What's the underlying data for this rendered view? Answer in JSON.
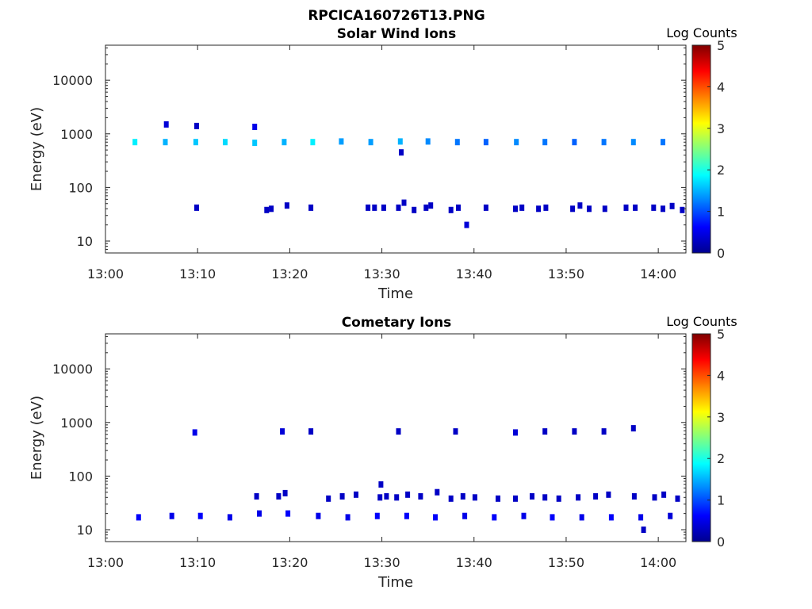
{
  "figure_title": "RPCICA160726T13.PNG",
  "colors": {
    "colormap": [
      "#00008f",
      "#0000ff",
      "#0080ff",
      "#00ffff",
      "#80ff80",
      "#ffff00",
      "#ff8000",
      "#ff0000",
      "#800000"
    ],
    "axis": "#262626",
    "background": "#ffffff"
  },
  "chart_data": [
    {
      "type": "heatmap",
      "title": "Solar Wind Ions",
      "xlabel": "Time",
      "ylabel": "Energy (eV)",
      "x_unit": "minutes after 13:00",
      "xlim": [
        0,
        63
      ],
      "ylim": [
        6,
        45000
      ],
      "yscale": "log",
      "x_ticks": [
        0,
        10,
        20,
        30,
        40,
        50,
        60
      ],
      "x_tick_labels": [
        "13:00",
        "13:10",
        "13:20",
        "13:30",
        "13:40",
        "13:50",
        "14:00"
      ],
      "y_ticks": [
        10,
        100,
        1000,
        10000
      ],
      "y_tick_labels": [
        "10",
        "100",
        "1000",
        "10000"
      ],
      "colorbar": {
        "label": "Log Counts",
        "range": [
          0,
          5
        ],
        "ticks": [
          0,
          1,
          2,
          3,
          4,
          5
        ],
        "tick_labels": [
          "0",
          "1",
          "2",
          "3",
          "4",
          "5"
        ]
      },
      "cells": [
        {
          "t": 3.2,
          "e": 700,
          "v": 1.8
        },
        {
          "t": 6.5,
          "e": 700,
          "v": 1.5
        },
        {
          "t": 9.8,
          "e": 700,
          "v": 1.6
        },
        {
          "t": 13.0,
          "e": 700,
          "v": 1.7
        },
        {
          "t": 16.2,
          "e": 680,
          "v": 1.6
        },
        {
          "t": 19.4,
          "e": 700,
          "v": 1.5
        },
        {
          "t": 22.5,
          "e": 700,
          "v": 1.8
        },
        {
          "t": 25.6,
          "e": 720,
          "v": 1.4
        },
        {
          "t": 28.8,
          "e": 700,
          "v": 1.4
        },
        {
          "t": 32.0,
          "e": 720,
          "v": 1.5
        },
        {
          "t": 35.0,
          "e": 720,
          "v": 1.3
        },
        {
          "t": 38.2,
          "e": 700,
          "v": 1.2
        },
        {
          "t": 41.3,
          "e": 700,
          "v": 1.1
        },
        {
          "t": 44.6,
          "e": 700,
          "v": 1.3
        },
        {
          "t": 47.7,
          "e": 700,
          "v": 1.2
        },
        {
          "t": 50.9,
          "e": 700,
          "v": 1.1
        },
        {
          "t": 54.1,
          "e": 700,
          "v": 1.2
        },
        {
          "t": 57.3,
          "e": 700,
          "v": 1.3
        },
        {
          "t": 60.5,
          "e": 700,
          "v": 1.2
        },
        {
          "t": 6.6,
          "e": 1500,
          "v": 0.4
        },
        {
          "t": 9.9,
          "e": 1400,
          "v": 0.3
        },
        {
          "t": 16.2,
          "e": 1350,
          "v": 0.5
        },
        {
          "t": 32.1,
          "e": 450,
          "v": 0.3
        },
        {
          "t": 9.9,
          "e": 42,
          "v": 0.3
        },
        {
          "t": 17.5,
          "e": 38,
          "v": 0.3
        },
        {
          "t": 18.0,
          "e": 40,
          "v": 0.3
        },
        {
          "t": 19.7,
          "e": 46,
          "v": 0.3
        },
        {
          "t": 22.3,
          "e": 42,
          "v": 0.3
        },
        {
          "t": 28.5,
          "e": 42,
          "v": 0.3
        },
        {
          "t": 29.2,
          "e": 42,
          "v": 0.3
        },
        {
          "t": 30.2,
          "e": 42,
          "v": 0.3
        },
        {
          "t": 31.8,
          "e": 42,
          "v": 0.3
        },
        {
          "t": 32.4,
          "e": 52,
          "v": 0.3
        },
        {
          "t": 33.5,
          "e": 38,
          "v": 0.3
        },
        {
          "t": 34.8,
          "e": 42,
          "v": 0.3
        },
        {
          "t": 35.3,
          "e": 46,
          "v": 0.3
        },
        {
          "t": 37.5,
          "e": 38,
          "v": 0.3
        },
        {
          "t": 38.3,
          "e": 42,
          "v": 0.3
        },
        {
          "t": 39.2,
          "e": 20,
          "v": 0.4
        },
        {
          "t": 41.3,
          "e": 42,
          "v": 0.3
        },
        {
          "t": 44.5,
          "e": 40,
          "v": 0.3
        },
        {
          "t": 45.2,
          "e": 42,
          "v": 0.3
        },
        {
          "t": 47.0,
          "e": 40,
          "v": 0.3
        },
        {
          "t": 47.8,
          "e": 42,
          "v": 0.3
        },
        {
          "t": 50.7,
          "e": 40,
          "v": 0.3
        },
        {
          "t": 51.5,
          "e": 46,
          "v": 0.3
        },
        {
          "t": 52.5,
          "e": 40,
          "v": 0.3
        },
        {
          "t": 54.2,
          "e": 40,
          "v": 0.3
        },
        {
          "t": 56.5,
          "e": 42,
          "v": 0.3
        },
        {
          "t": 57.5,
          "e": 42,
          "v": 0.3
        },
        {
          "t": 59.5,
          "e": 42,
          "v": 0.3
        },
        {
          "t": 60.5,
          "e": 40,
          "v": 0.3
        },
        {
          "t": 61.5,
          "e": 45,
          "v": 0.3
        },
        {
          "t": 62.6,
          "e": 38,
          "v": 0.3
        }
      ]
    },
    {
      "type": "heatmap",
      "title": "Cometary Ions",
      "xlabel": "Time",
      "ylabel": "Energy (eV)",
      "x_unit": "minutes after 13:00",
      "xlim": [
        0,
        63
      ],
      "ylim": [
        6,
        45000
      ],
      "yscale": "log",
      "x_ticks": [
        0,
        10,
        20,
        30,
        40,
        50,
        60
      ],
      "x_tick_labels": [
        "13:00",
        "13:10",
        "13:20",
        "13:30",
        "13:40",
        "13:50",
        "14:00"
      ],
      "y_ticks": [
        10,
        100,
        1000,
        10000
      ],
      "y_tick_labels": [
        "10",
        "100",
        "1000",
        "10000"
      ],
      "colorbar": {
        "label": "Log Counts",
        "range": [
          0,
          5
        ],
        "ticks": [
          0,
          1,
          2,
          3,
          4,
          5
        ],
        "tick_labels": [
          "0",
          "1",
          "2",
          "3",
          "4",
          "5"
        ]
      },
      "cells": [
        {
          "t": 9.7,
          "e": 650,
          "v": 0.5
        },
        {
          "t": 19.2,
          "e": 680,
          "v": 0.4
        },
        {
          "t": 22.3,
          "e": 680,
          "v": 0.3
        },
        {
          "t": 31.8,
          "e": 680,
          "v": 0.3
        },
        {
          "t": 38.0,
          "e": 680,
          "v": 0.3
        },
        {
          "t": 44.5,
          "e": 650,
          "v": 0.4
        },
        {
          "t": 47.7,
          "e": 680,
          "v": 0.3
        },
        {
          "t": 50.9,
          "e": 680,
          "v": 0.3
        },
        {
          "t": 54.1,
          "e": 680,
          "v": 0.3
        },
        {
          "t": 57.3,
          "e": 780,
          "v": 0.3
        },
        {
          "t": 3.6,
          "e": 17,
          "v": 0.6
        },
        {
          "t": 7.2,
          "e": 18,
          "v": 0.5
        },
        {
          "t": 10.3,
          "e": 18,
          "v": 0.6
        },
        {
          "t": 13.5,
          "e": 17,
          "v": 0.5
        },
        {
          "t": 16.7,
          "e": 20,
          "v": 0.5
        },
        {
          "t": 19.8,
          "e": 20,
          "v": 0.6
        },
        {
          "t": 23.1,
          "e": 18,
          "v": 0.5
        },
        {
          "t": 26.3,
          "e": 17,
          "v": 0.5
        },
        {
          "t": 29.5,
          "e": 18,
          "v": 0.6
        },
        {
          "t": 32.7,
          "e": 18,
          "v": 0.6
        },
        {
          "t": 35.8,
          "e": 17,
          "v": 0.6
        },
        {
          "t": 39.0,
          "e": 18,
          "v": 0.5
        },
        {
          "t": 42.2,
          "e": 17,
          "v": 0.6
        },
        {
          "t": 45.4,
          "e": 18,
          "v": 0.5
        },
        {
          "t": 48.5,
          "e": 17,
          "v": 0.6
        },
        {
          "t": 51.7,
          "e": 17,
          "v": 0.5
        },
        {
          "t": 54.9,
          "e": 17,
          "v": 0.6
        },
        {
          "t": 58.1,
          "e": 17,
          "v": 0.5
        },
        {
          "t": 61.3,
          "e": 18,
          "v": 0.4
        },
        {
          "t": 16.4,
          "e": 42,
          "v": 0.3
        },
        {
          "t": 18.8,
          "e": 42,
          "v": 0.3
        },
        {
          "t": 19.5,
          "e": 48,
          "v": 0.3
        },
        {
          "t": 24.2,
          "e": 38,
          "v": 0.3
        },
        {
          "t": 25.7,
          "e": 42,
          "v": 0.3
        },
        {
          "t": 27.2,
          "e": 45,
          "v": 0.3
        },
        {
          "t": 29.8,
          "e": 40,
          "v": 0.3
        },
        {
          "t": 30.5,
          "e": 42,
          "v": 0.3
        },
        {
          "t": 31.6,
          "e": 40,
          "v": 0.3
        },
        {
          "t": 32.8,
          "e": 45,
          "v": 0.3
        },
        {
          "t": 34.2,
          "e": 42,
          "v": 0.3
        },
        {
          "t": 36.0,
          "e": 50,
          "v": 0.3
        },
        {
          "t": 37.5,
          "e": 38,
          "v": 0.3
        },
        {
          "t": 38.8,
          "e": 42,
          "v": 0.3
        },
        {
          "t": 40.1,
          "e": 40,
          "v": 0.3
        },
        {
          "t": 42.6,
          "e": 38,
          "v": 0.3
        },
        {
          "t": 44.5,
          "e": 38,
          "v": 0.3
        },
        {
          "t": 46.3,
          "e": 42,
          "v": 0.3
        },
        {
          "t": 47.7,
          "e": 40,
          "v": 0.3
        },
        {
          "t": 49.2,
          "e": 38,
          "v": 0.3
        },
        {
          "t": 51.3,
          "e": 40,
          "v": 0.3
        },
        {
          "t": 53.2,
          "e": 42,
          "v": 0.3
        },
        {
          "t": 54.6,
          "e": 45,
          "v": 0.3
        },
        {
          "t": 57.4,
          "e": 42,
          "v": 0.3
        },
        {
          "t": 59.6,
          "e": 40,
          "v": 0.3
        },
        {
          "t": 60.6,
          "e": 45,
          "v": 0.3
        },
        {
          "t": 62.1,
          "e": 38,
          "v": 0.3
        },
        {
          "t": 29.9,
          "e": 70,
          "v": 0.3
        },
        {
          "t": 58.4,
          "e": 10,
          "v": 0.3
        }
      ]
    }
  ]
}
